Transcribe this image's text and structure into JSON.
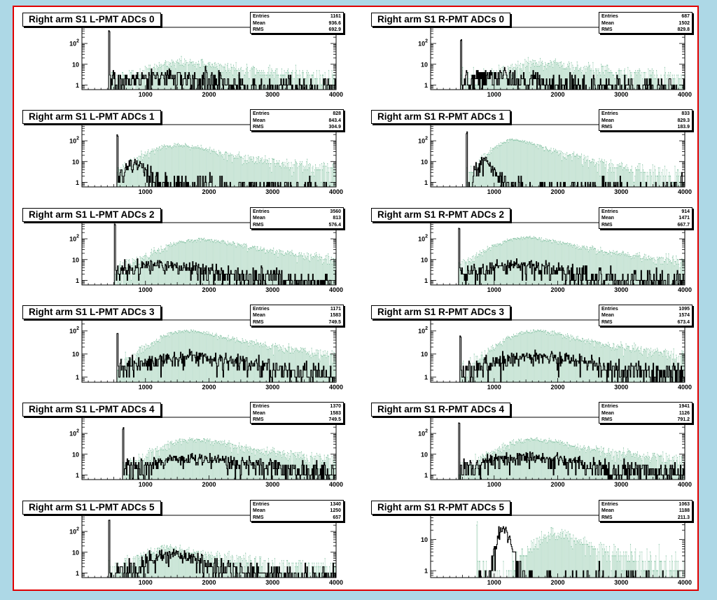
{
  "colors": {
    "background": "#add8e6",
    "canvas_border": "#e00000",
    "fill_series": "#7fbf9f",
    "line_series": "#000000"
  },
  "stats_labels": {
    "entries": "Entries",
    "mean": "Mean",
    "rms": "RMS"
  },
  "chart_data": [
    {
      "type": "bar",
      "title": "Right arm S1 L-PMT ADCs 0",
      "xlim": [
        0,
        4000
      ],
      "ylog": true,
      "ylim": [
        0.6,
        600
      ],
      "x_ticks": [
        1000,
        2000,
        3000,
        4000
      ],
      "x_tick_labels": [
        "1000",
        "2000",
        "3000",
        "4000"
      ],
      "y_ticks": [
        1,
        10,
        100
      ],
      "y_tick_labels": [
        "1",
        "10",
        "10²"
      ],
      "stats": {
        "entries": "1161",
        "mean": "936.6",
        "rms": "692.9"
      },
      "series": [
        {
          "style": "fill",
          "pedestal": {
            "pos": 430,
            "height": 0
          },
          "peak": {
            "center": 1600,
            "height": 12,
            "width": 360,
            "tail": 1200
          },
          "floor": 2
        },
        {
          "style": "line",
          "pedestal": {
            "pos": 430,
            "height": 400
          },
          "peak": {
            "center": 1300,
            "height": 1.5,
            "width": 500,
            "tail": 800
          },
          "floor": 1
        }
      ]
    },
    {
      "type": "bar",
      "title": "Right arm S1 R-PMT ADCs 0",
      "xlim": [
        0,
        4000
      ],
      "ylog": true,
      "ylim": [
        0.6,
        600
      ],
      "x_ticks": [
        1000,
        2000,
        3000,
        4000
      ],
      "x_tick_labels": [
        "1000",
        "2000",
        "3000",
        "4000"
      ],
      "y_ticks": [
        1,
        10,
        100
      ],
      "y_tick_labels": [
        "1",
        "10",
        "10²"
      ],
      "stats": {
        "entries": "687",
        "mean": "1502",
        "rms": "829.8"
      },
      "series": [
        {
          "style": "fill",
          "pedestal": {
            "pos": 480,
            "height": 0
          },
          "peak": {
            "center": 1750,
            "height": 10,
            "width": 380,
            "tail": 1200
          },
          "floor": 2
        },
        {
          "style": "line",
          "pedestal": {
            "pos": 480,
            "height": 150
          },
          "peak": {
            "center": 1100,
            "height": 2,
            "width": 400,
            "tail": 600
          },
          "floor": 1
        }
      ]
    },
    {
      "type": "bar",
      "title": "Right arm S1 L-PMT ADCs 1",
      "xlim": [
        0,
        4000
      ],
      "ylog": true,
      "ylim": [
        0.6,
        600
      ],
      "x_ticks": [
        1000,
        2000,
        3000,
        4000
      ],
      "x_tick_labels": [
        "1000",
        "2000",
        "3000",
        "4000"
      ],
      "y_ticks": [
        1,
        10,
        100
      ],
      "y_tick_labels": [
        "1",
        "10",
        "10²"
      ],
      "stats": {
        "entries": "828",
        "mean": "843.4",
        "rms": "304.9"
      },
      "series": [
        {
          "style": "fill",
          "pedestal": {
            "pos": 560,
            "height": 0
          },
          "peak": {
            "center": 1550,
            "height": 60,
            "width": 380,
            "tail": 900
          },
          "floor": 1
        },
        {
          "style": "line",
          "pedestal": {
            "pos": 560,
            "height": 200
          },
          "peak": {
            "center": 880,
            "height": 10,
            "width": 130,
            "tail": 100
          },
          "floor": 0.5
        }
      ]
    },
    {
      "type": "bar",
      "title": "Right arm S1 R-PMT ADCs 1",
      "xlim": [
        0,
        4000
      ],
      "ylog": true,
      "ylim": [
        0.6,
        600
      ],
      "x_ticks": [
        1000,
        2000,
        3000,
        4000
      ],
      "x_tick_labels": [
        "1000",
        "2000",
        "3000",
        "4000"
      ],
      "y_ticks": [
        1,
        10,
        100
      ],
      "y_tick_labels": [
        "1",
        "10",
        "10²"
      ],
      "stats": {
        "entries": "833",
        "mean": "829.3",
        "rms": "183.9"
      },
      "series": [
        {
          "style": "fill",
          "pedestal": {
            "pos": 570,
            "height": 0
          },
          "peak": {
            "center": 1350,
            "height": 110,
            "width": 260,
            "tail": 600
          },
          "floor": 0.5
        },
        {
          "style": "line",
          "pedestal": {
            "pos": 570,
            "height": 250
          },
          "peak": {
            "center": 880,
            "height": 12,
            "width": 110,
            "tail": 80
          },
          "floor": 0.3
        }
      ]
    },
    {
      "type": "bar",
      "title": "Right arm S1 L-PMT ADCs 2",
      "xlim": [
        0,
        4000
      ],
      "ylog": true,
      "ylim": [
        0.6,
        600
      ],
      "x_ticks": [
        1000,
        2000,
        3000,
        4000
      ],
      "x_tick_labels": [
        "1000",
        "2000",
        "3000",
        "4000"
      ],
      "y_ticks": [
        1,
        10,
        100
      ],
      "y_tick_labels": [
        "1",
        "10",
        "10²"
      ],
      "stats": {
        "entries": "3560",
        "mean": "813",
        "rms": "576.4"
      },
      "series": [
        {
          "style": "fill",
          "pedestal": {
            "pos": 520,
            "height": 0
          },
          "peak": {
            "center": 1900,
            "height": 90,
            "width": 450,
            "tail": 1100
          },
          "floor": 2
        },
        {
          "style": "line",
          "pedestal": {
            "pos": 520,
            "height": 500
          },
          "peak": {
            "center": 1300,
            "height": 5,
            "width": 500,
            "tail": 900
          },
          "floor": 1
        }
      ]
    },
    {
      "type": "bar",
      "title": "Right arm S1 R-PMT ADCs 2",
      "xlim": [
        0,
        4000
      ],
      "ylog": true,
      "ylim": [
        0.6,
        600
      ],
      "x_ticks": [
        1000,
        2000,
        3000,
        4000
      ],
      "x_tick_labels": [
        "1000",
        "2000",
        "3000",
        "4000"
      ],
      "y_ticks": [
        1,
        10,
        100
      ],
      "y_tick_labels": [
        "1",
        "10",
        "10²"
      ],
      "stats": {
        "entries": "914",
        "mean": "1471",
        "rms": "667.7"
      },
      "series": [
        {
          "style": "fill",
          "pedestal": {
            "pos": 450,
            "height": 0
          },
          "peak": {
            "center": 1550,
            "height": 110,
            "width": 400,
            "tail": 1000
          },
          "floor": 2
        },
        {
          "style": "line",
          "pedestal": {
            "pos": 450,
            "height": 300
          },
          "peak": {
            "center": 1400,
            "height": 5,
            "width": 450,
            "tail": 800
          },
          "floor": 1
        }
      ]
    },
    {
      "type": "bar",
      "title": "Right arm S1 L-PMT ADCs 3",
      "xlim": [
        0,
        4000
      ],
      "ylog": true,
      "ylim": [
        0.6,
        300
      ],
      "x_ticks": [
        1000,
        2000,
        3000,
        4000
      ],
      "x_tick_labels": [
        "1000",
        "2000",
        "3000",
        "4000"
      ],
      "y_ticks": [
        1,
        10,
        100
      ],
      "y_tick_labels": [
        "1",
        "10",
        "10²"
      ],
      "stats": {
        "entries": "1171",
        "mean": "1583",
        "rms": "749.5"
      },
      "series": [
        {
          "style": "fill",
          "pedestal": {
            "pos": 560,
            "height": 0
          },
          "peak": {
            "center": 1700,
            "height": 100,
            "width": 380,
            "tail": 1000
          },
          "floor": 2
        },
        {
          "style": "line",
          "pedestal": {
            "pos": 560,
            "height": 80
          },
          "peak": {
            "center": 1800,
            "height": 7,
            "width": 600,
            "tail": 1000
          },
          "floor": 1.5
        }
      ]
    },
    {
      "type": "bar",
      "title": "Right arm S1 R-PMT ADCs 3",
      "xlim": [
        0,
        4000
      ],
      "ylog": true,
      "ylim": [
        0.6,
        300
      ],
      "x_ticks": [
        1000,
        2000,
        3000,
        4000
      ],
      "x_tick_labels": [
        "1000",
        "2000",
        "3000",
        "4000"
      ],
      "y_ticks": [
        1,
        10,
        100
      ],
      "y_tick_labels": [
        "1",
        "10",
        "10²"
      ],
      "stats": {
        "entries": "1095",
        "mean": "1574",
        "rms": "673.4"
      },
      "series": [
        {
          "style": "fill",
          "pedestal": {
            "pos": 470,
            "height": 0
          },
          "peak": {
            "center": 1700,
            "height": 100,
            "width": 380,
            "tail": 1000
          },
          "floor": 2
        },
        {
          "style": "line",
          "pedestal": {
            "pos": 470,
            "height": 60
          },
          "peak": {
            "center": 1700,
            "height": 7,
            "width": 550,
            "tail": 900
          },
          "floor": 1.5
        }
      ]
    },
    {
      "type": "bar",
      "title": "Right arm S1 L-PMT ADCs 4",
      "xlim": [
        0,
        4000
      ],
      "ylog": true,
      "ylim": [
        0.6,
        600
      ],
      "x_ticks": [
        1000,
        2000,
        3000,
        4000
      ],
      "x_tick_labels": [
        "1000",
        "2000",
        "3000",
        "4000"
      ],
      "y_ticks": [
        1,
        10,
        100
      ],
      "y_tick_labels": [
        "1",
        "10",
        "10²"
      ],
      "stats": {
        "entries": "1370",
        "mean": "1583",
        "rms": "749.5"
      },
      "series": [
        {
          "style": "fill",
          "pedestal": {
            "pos": 650,
            "height": 0
          },
          "peak": {
            "center": 1800,
            "height": 50,
            "width": 380,
            "tail": 1000
          },
          "floor": 2
        },
        {
          "style": "line",
          "pedestal": {
            "pos": 650,
            "height": 180
          },
          "peak": {
            "center": 1900,
            "height": 6,
            "width": 550,
            "tail": 900
          },
          "floor": 1.5
        }
      ]
    },
    {
      "type": "bar",
      "title": "Right arm S1 R-PMT ADCs 4",
      "xlim": [
        0,
        4000
      ],
      "ylog": true,
      "ylim": [
        0.6,
        600
      ],
      "x_ticks": [
        1000,
        2000,
        3000,
        4000
      ],
      "x_tick_labels": [
        "1000",
        "2000",
        "3000",
        "4000"
      ],
      "y_ticks": [
        1,
        10,
        100
      ],
      "y_tick_labels": [
        "1",
        "10",
        "10²"
      ],
      "stats": {
        "entries": "1941",
        "mean": "1126",
        "rms": "791.2"
      },
      "series": [
        {
          "style": "fill",
          "pedestal": {
            "pos": 450,
            "height": 0
          },
          "peak": {
            "center": 1650,
            "height": 50,
            "width": 380,
            "tail": 1000
          },
          "floor": 2
        },
        {
          "style": "line",
          "pedestal": {
            "pos": 450,
            "height": 300
          },
          "peak": {
            "center": 1600,
            "height": 6,
            "width": 550,
            "tail": 900
          },
          "floor": 1.5
        }
      ]
    },
    {
      "type": "bar",
      "title": "Right arm S1 L-PMT ADCs 5",
      "xlim": [
        0,
        4000
      ],
      "ylog": true,
      "ylim": [
        0.6,
        600
      ],
      "x_ticks": [
        1000,
        2000,
        3000,
        4000
      ],
      "x_tick_labels": [
        "1000",
        "2000",
        "3000",
        "4000"
      ],
      "y_ticks": [
        1,
        10,
        100
      ],
      "y_tick_labels": [
        "1",
        "10",
        "10²"
      ],
      "stats": {
        "entries": "1340",
        "mean": "1250",
        "rms": "657"
      },
      "series": [
        {
          "style": "fill",
          "pedestal": {
            "pos": 430,
            "height": 0
          },
          "peak": {
            "center": 1400,
            "height": 14,
            "width": 320,
            "tail": 900
          },
          "floor": 1.5
        },
        {
          "style": "line",
          "pedestal": {
            "pos": 430,
            "height": 350
          },
          "peak": {
            "center": 1450,
            "height": 8,
            "width": 280,
            "tail": 400
          },
          "floor": 1
        }
      ]
    },
    {
      "type": "bar",
      "title": "Right arm S1 R-PMT ADCs 5",
      "xlim": [
        0,
        4000
      ],
      "ylog": true,
      "ylim": [
        0.6,
        60
      ],
      "x_ticks": [
        1000,
        2000,
        3000,
        4000
      ],
      "x_tick_labels": [
        "1000",
        "2000",
        "3000",
        "4000"
      ],
      "y_ticks": [
        1,
        10
      ],
      "y_tick_labels": [
        "1",
        "10"
      ],
      "stats": {
        "entries": "1063",
        "mean": "1188",
        "rms": "211.3"
      },
      "series": [
        {
          "style": "fill",
          "pedestal": {
            "pos": 730,
            "height": 40
          },
          "peak": {
            "center": 1950,
            "height": 16,
            "width": 240,
            "tail": 700
          },
          "floor": 0.8
        },
        {
          "style": "line",
          "pedestal": {
            "pos": 730,
            "height": 0
          },
          "peak": {
            "center": 1180,
            "height": 20,
            "width": 100,
            "tail": 60
          },
          "floor": 0.2
        }
      ]
    }
  ]
}
